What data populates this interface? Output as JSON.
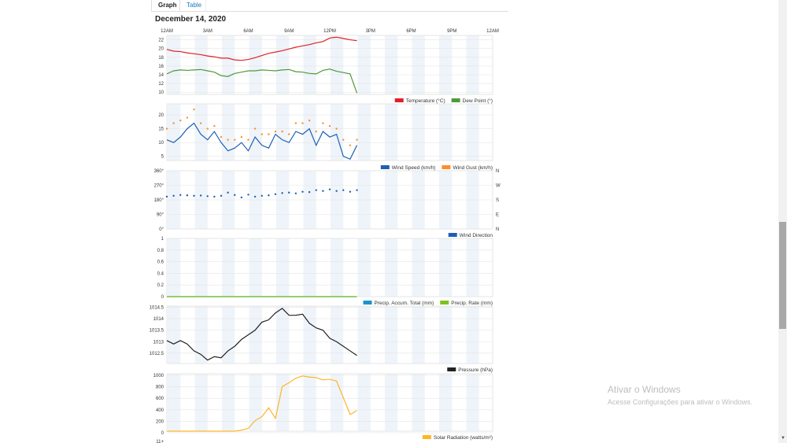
{
  "tabs": {
    "graph": "Graph",
    "table": "Table"
  },
  "date": "December 14, 2020",
  "time_ticks": [
    "12AM",
    "3AM",
    "6AM",
    "9AM",
    "12PM",
    "3PM",
    "6PM",
    "9PM",
    "12AM"
  ],
  "colors": {
    "temperature": "#e0202a",
    "dew_point": "#4e9a3a",
    "wind_speed": "#1f5fb5",
    "wind_gust": "#ff8c2a",
    "wind_direction": "#1f5fb5",
    "precip_total": "#1a95c9",
    "precip_rate": "#7dc21e",
    "pressure": "#222222",
    "solar": "#ffb526",
    "band": "#eef4f9",
    "grid": "#e6e6e6"
  },
  "chart_data": [
    {
      "type": "line",
      "name": "temperature",
      "y_ticks": [
        "22",
        "20",
        "18",
        "16",
        "14",
        "12",
        "10"
      ],
      "ylim": [
        9.5,
        23
      ],
      "x_hours": [
        0,
        0.5,
        1,
        1.5,
        2,
        2.5,
        3,
        3.5,
        4,
        4.5,
        5,
        5.5,
        6,
        6.5,
        7,
        7.5,
        8,
        8.5,
        9,
        9.5,
        10,
        10.5,
        11,
        11.5,
        12,
        12.5,
        13,
        13.5,
        14
      ],
      "series": [
        {
          "name": "Temperature (°C)",
          "color_key": "temperature",
          "values": [
            19.8,
            19.4,
            19.3,
            19.0,
            18.8,
            18.6,
            18.3,
            18.1,
            17.8,
            17.8,
            17.4,
            17.3,
            17.5,
            17.9,
            18.4,
            18.9,
            19.2,
            19.5,
            19.9,
            20.3,
            20.6,
            20.9,
            21.3,
            21.6,
            22.4,
            22.6,
            22.3,
            22.0,
            21.8
          ]
        },
        {
          "name": "Dew Point (°)",
          "color_key": "dew_point",
          "values": [
            14.2,
            14.9,
            15.1,
            15.0,
            15.1,
            15.2,
            14.9,
            14.6,
            13.8,
            13.6,
            14.3,
            14.6,
            14.9,
            14.9,
            15.1,
            15.0,
            14.9,
            15.1,
            15.2,
            14.7,
            14.6,
            14.3,
            14.2,
            15.0,
            15.3,
            14.8,
            14.5,
            14.2,
            9.8
          ]
        }
      ]
    },
    {
      "type": "line",
      "name": "wind",
      "y_ticks": [
        "20",
        "15",
        "10",
        "5"
      ],
      "ylim": [
        3.5,
        24
      ],
      "x_hours": [
        0,
        0.5,
        1,
        1.5,
        2,
        2.5,
        3,
        3.5,
        4,
        4.5,
        5,
        5.5,
        6,
        6.5,
        7,
        7.5,
        8,
        8.5,
        9,
        9.5,
        10,
        10.5,
        11,
        11.5,
        12,
        12.5,
        13,
        13.5,
        14
      ],
      "series": [
        {
          "name": "Wind Speed (km/h)",
          "color_key": "wind_speed",
          "values": [
            11,
            10,
            12,
            15,
            17,
            13,
            11,
            14,
            10,
            7,
            8,
            10,
            7,
            12,
            9,
            8,
            13,
            11,
            10,
            14,
            13,
            15,
            9,
            14,
            12,
            13,
            5,
            4,
            9
          ]
        },
        {
          "name": "Wind Gust (km/h)",
          "color_key": "wind_gust",
          "style": "dots",
          "values": [
            15,
            17,
            18,
            19,
            22,
            17,
            15,
            16,
            12,
            11,
            11,
            12,
            11,
            15,
            13,
            13,
            14,
            14,
            13,
            17,
            17,
            18,
            14,
            17,
            16,
            15,
            11,
            9,
            11
          ]
        }
      ]
    },
    {
      "type": "scatter",
      "name": "wind_direction",
      "y_ticks": [
        "360°",
        "270°",
        "180°",
        "90°",
        "0°"
      ],
      "y_ticks_right": [
        "N",
        "W",
        "S",
        "E",
        "N"
      ],
      "ylim": [
        0,
        360
      ],
      "x_hours": [
        0,
        0.5,
        1,
        1.5,
        2,
        2.5,
        3,
        3.5,
        4,
        4.5,
        5,
        5.5,
        6,
        6.5,
        7,
        7.5,
        8,
        8.5,
        9,
        9.5,
        10,
        10.5,
        11,
        11.5,
        12,
        12.5,
        13,
        13.5,
        14
      ],
      "series": [
        {
          "name": "Wind Direction",
          "color_key": "wind_direction",
          "style": "dots",
          "values": [
            200,
            205,
            210,
            208,
            205,
            207,
            203,
            200,
            205,
            225,
            210,
            195,
            212,
            200,
            205,
            208,
            215,
            222,
            225,
            220,
            230,
            228,
            240,
            235,
            245,
            235,
            240,
            230,
            240
          ]
        }
      ]
    },
    {
      "type": "line",
      "name": "precipitation",
      "y_ticks": [
        "1",
        "0.8",
        "0.6",
        "0.4",
        "0.2",
        "0"
      ],
      "ylim": [
        0,
        1
      ],
      "x_hours": [
        0,
        14
      ],
      "series": [
        {
          "name": "Precip. Accum. Total (mm)",
          "color_key": "precip_total",
          "values": [
            0,
            0
          ]
        },
        {
          "name": "Precip. Rate (mm)",
          "color_key": "precip_rate",
          "values": [
            0,
            0
          ]
        }
      ]
    },
    {
      "type": "line",
      "name": "pressure",
      "y_ticks": [
        "1014.5",
        "1014",
        "1013.5",
        "1013",
        "1012.5"
      ],
      "ylim": [
        1012.05,
        1014.55
      ],
      "x_hours": [
        0,
        0.5,
        1,
        1.5,
        2,
        2.5,
        3,
        3.5,
        4,
        4.5,
        5,
        5.5,
        6,
        6.5,
        7,
        7.5,
        8,
        8.5,
        9,
        9.5,
        10,
        10.5,
        11,
        11.5,
        12,
        12.5,
        13,
        13.5,
        14
      ],
      "series": [
        {
          "name": "Pressure (hPa)",
          "color_key": "pressure",
          "values": [
            1013.05,
            1012.9,
            1013.05,
            1012.9,
            1012.6,
            1012.45,
            1012.2,
            1012.35,
            1012.3,
            1012.6,
            1012.8,
            1013.1,
            1013.3,
            1013.5,
            1013.85,
            1013.95,
            1014.25,
            1014.45,
            1014.15,
            1014.15,
            1014.2,
            1013.8,
            1013.6,
            1013.5,
            1013.15,
            1013.0,
            1012.8,
            1012.6,
            1012.4
          ]
        }
      ]
    },
    {
      "type": "line",
      "name": "solar",
      "y_ticks": [
        "1000",
        "800",
        "600",
        "400",
        "200",
        "0"
      ],
      "ylim": [
        0,
        1030
      ],
      "x_hours": [
        0,
        0.5,
        1,
        1.5,
        2,
        2.5,
        3,
        3.5,
        4,
        4.5,
        5,
        5.5,
        6,
        6.5,
        7,
        7.5,
        8,
        8.5,
        9,
        9.5,
        10,
        10.5,
        11,
        11.5,
        12,
        12.5,
        13,
        13.5,
        14
      ],
      "series": [
        {
          "name": "Solar Radiation (watts/m²)",
          "color_key": "solar",
          "values": [
            0,
            0,
            0,
            0,
            0,
            0,
            0,
            0,
            0,
            0,
            0,
            20,
            50,
            190,
            260,
            420,
            230,
            800,
            870,
            950,
            990,
            970,
            960,
            920,
            930,
            900,
            600,
            300,
            370
          ]
        }
      ]
    }
  ],
  "next_panel_tick": "11+",
  "watermark": {
    "title": "Ativar o Windows",
    "subtitle": "Acesse Configurações para ativar o Windows."
  }
}
